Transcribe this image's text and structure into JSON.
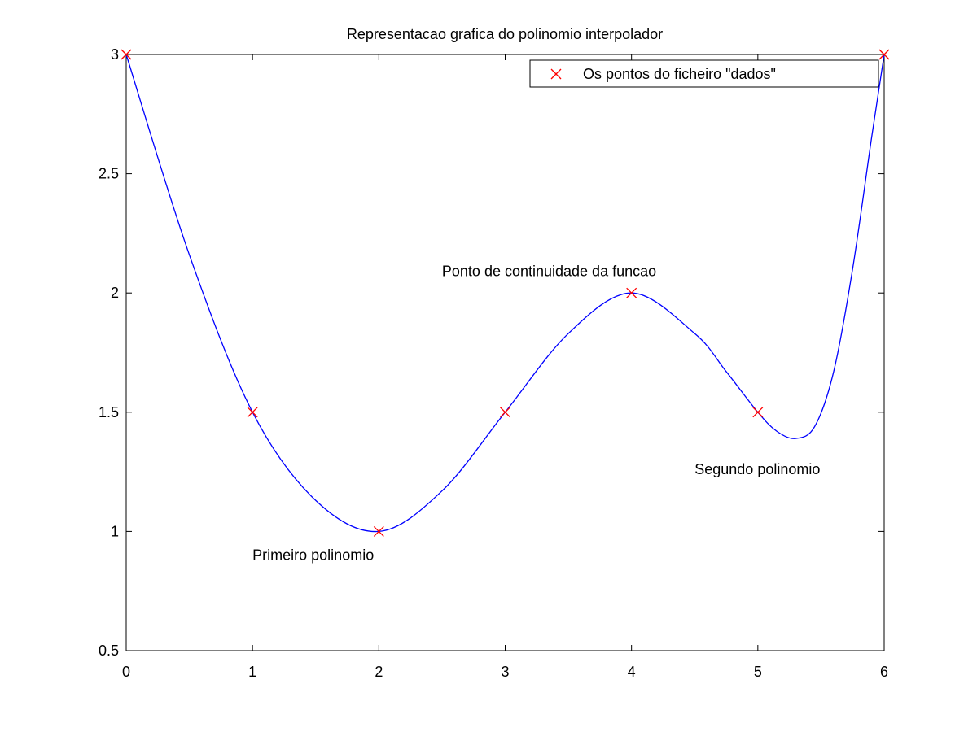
{
  "chart_data": {
    "type": "line",
    "title": "Representacao grafica do polinomio interpolador",
    "xlabel": "",
    "ylabel": "",
    "xlim": [
      0,
      6
    ],
    "ylim": [
      0.5,
      3
    ],
    "xticks": [
      0,
      1,
      2,
      3,
      4,
      5,
      6
    ],
    "yticks": [
      0.5,
      1,
      1.5,
      2,
      2.5,
      3
    ],
    "xtick_labels": [
      "0",
      "1",
      "2",
      "3",
      "4",
      "5",
      "6"
    ],
    "ytick_labels": [
      "0.5",
      "1",
      "1.5",
      "2",
      "2.5",
      "3"
    ],
    "grid": false,
    "legend_position": "top-right",
    "series": [
      {
        "name": "Os pontos do ficheiro \"dados\"",
        "kind": "scatter",
        "marker": "x",
        "color": "#ff0000",
        "x": [
          0,
          1,
          2,
          3,
          4,
          5,
          6
        ],
        "y": [
          3,
          1.5,
          1,
          1.5,
          2,
          1.5,
          3
        ]
      },
      {
        "kind": "line",
        "color": "#0000ff",
        "x": [
          0,
          0.5,
          1,
          1.5,
          2,
          2.5,
          3,
          3.5,
          4,
          4.5,
          4.75,
          5,
          5.15,
          5.3,
          5.45,
          5.6,
          5.75,
          5.9,
          6
        ],
        "y": [
          3,
          2.16,
          1.5,
          1.13,
          1,
          1.17,
          1.5,
          1.83,
          2,
          1.83,
          1.67,
          1.5,
          1.42,
          1.39,
          1.44,
          1.67,
          2.1,
          2.65,
          3
        ]
      }
    ],
    "annotations": [
      {
        "text": "Ponto de continuidade da funcao",
        "x": 2.5,
        "y": 2.07
      },
      {
        "text": "Primeiro polinomio",
        "x": 1,
        "y": 0.88
      },
      {
        "text": "Segundo polinomio",
        "x": 4.5,
        "y": 1.24
      }
    ]
  }
}
